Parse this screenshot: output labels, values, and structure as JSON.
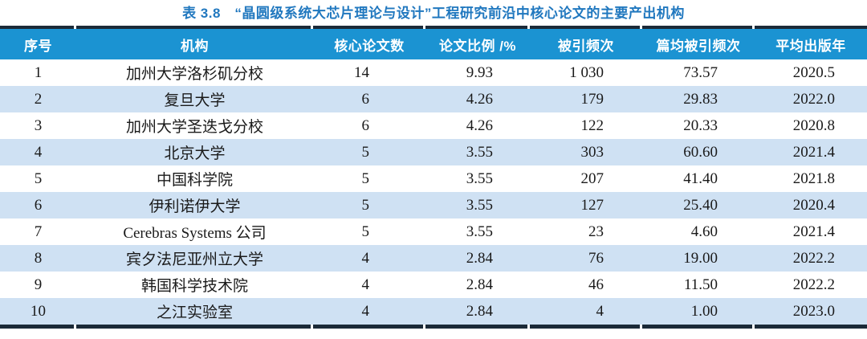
{
  "title": "表 3.8　“晶圆级系统大芯片理论与设计”工程研究前沿中核心论文的主要产出机构",
  "colors": {
    "title_text": "#2178bf",
    "header_bg": "#1b93d2",
    "header_text": "#ffffff",
    "row_alt_bg": "#cfe1f3",
    "border_dark": "#1b2a38",
    "body_text": "#1a1a1a"
  },
  "table": {
    "columns": [
      "序号",
      "机构",
      "核心论文数",
      "论文比例 /%",
      "被引频次",
      "篇均被引频次",
      "平均出版年"
    ],
    "rows": [
      [
        "1",
        "加州大学洛杉矶分校",
        "14",
        "9.93",
        "1 030",
        "73.57",
        "2020.5"
      ],
      [
        "2",
        "复旦大学",
        "6",
        "4.26",
        "179",
        "29.83",
        "2022.0"
      ],
      [
        "3",
        "加州大学圣迭戈分校",
        "6",
        "4.26",
        "122",
        "20.33",
        "2020.8"
      ],
      [
        "4",
        "北京大学",
        "5",
        "3.55",
        "303",
        "60.60",
        "2021.4"
      ],
      [
        "5",
        "中国科学院",
        "5",
        "3.55",
        "207",
        "41.40",
        "2021.8"
      ],
      [
        "6",
        "伊利诺伊大学",
        "5",
        "3.55",
        "127",
        "25.40",
        "2020.4"
      ],
      [
        "7",
        "Cerebras Systems 公司",
        "5",
        "3.55",
        "23",
        "4.60",
        "2021.4"
      ],
      [
        "8",
        "宾夕法尼亚州立大学",
        "4",
        "2.84",
        "76",
        "19.00",
        "2022.2"
      ],
      [
        "9",
        "韩国科学技术院",
        "4",
        "2.84",
        "46",
        "11.50",
        "2022.2"
      ],
      [
        "10",
        "之江实验室",
        "4",
        "2.84",
        "4",
        "1.00",
        "2023.0"
      ]
    ]
  },
  "chart_data": {
    "type": "table",
    "title": "表 3.8　“晶圆级系统大芯片理论与设计”工程研究前沿中核心论文的主要产出机构",
    "columns": [
      "序号",
      "机构",
      "核心论文数",
      "论文比例 /%",
      "被引频次",
      "篇均被引频次",
      "平均出版年"
    ],
    "rows": [
      [
        1,
        "加州大学洛杉矶分校",
        14,
        9.93,
        1030,
        73.57,
        2020.5
      ],
      [
        2,
        "复旦大学",
        6,
        4.26,
        179,
        29.83,
        2022.0
      ],
      [
        3,
        "加州大学圣迭戈分校",
        6,
        4.26,
        122,
        20.33,
        2020.8
      ],
      [
        4,
        "北京大学",
        5,
        3.55,
        303,
        60.6,
        2021.4
      ],
      [
        5,
        "中国科学院",
        5,
        3.55,
        207,
        41.4,
        2021.8
      ],
      [
        6,
        "伊利诺伊大学",
        5,
        3.55,
        127,
        25.4,
        2020.4
      ],
      [
        7,
        "Cerebras Systems 公司",
        5,
        3.55,
        23,
        4.6,
        2021.4
      ],
      [
        8,
        "宾夕法尼亚州立大学",
        4,
        2.84,
        76,
        19.0,
        2022.2
      ],
      [
        9,
        "韩国科学技术院",
        4,
        2.84,
        46,
        11.5,
        2022.2
      ],
      [
        10,
        "之江实验室",
        4,
        2.84,
        4,
        1.0,
        2023.0
      ]
    ]
  }
}
